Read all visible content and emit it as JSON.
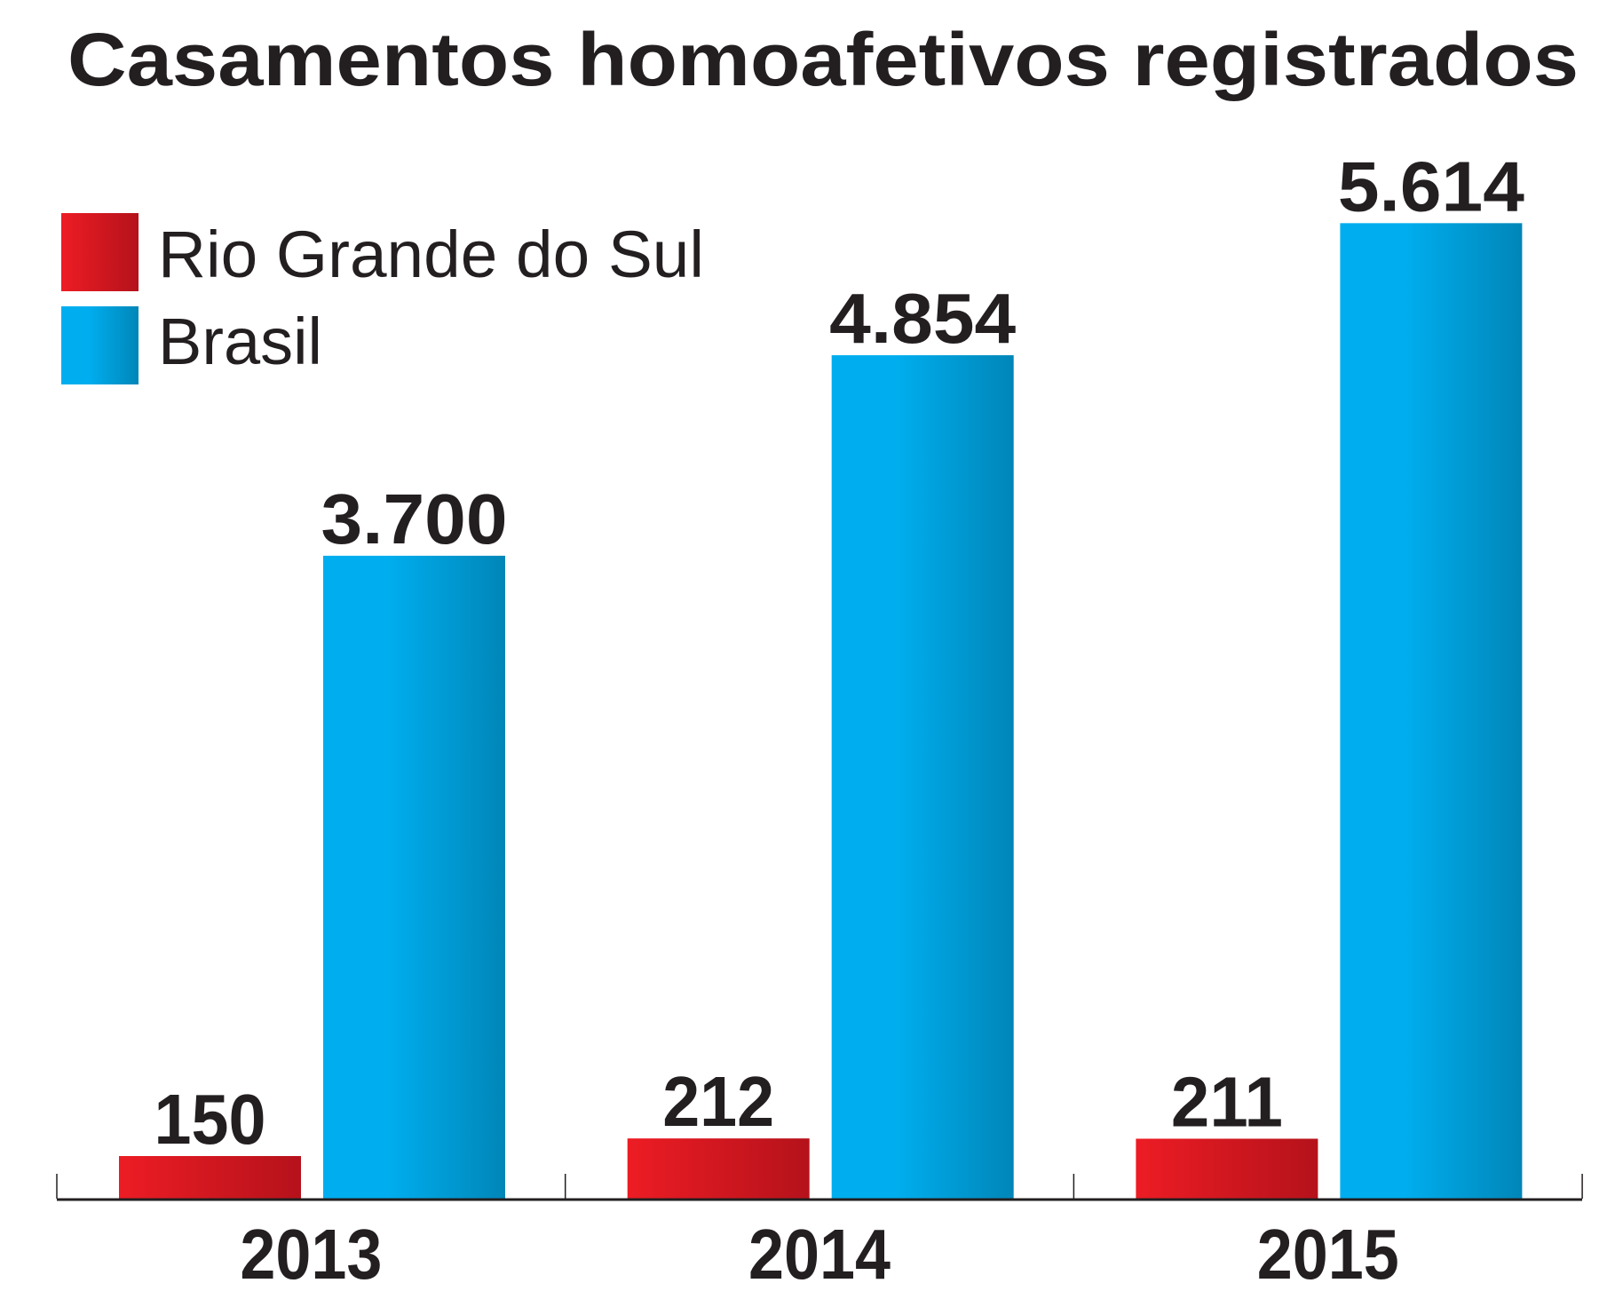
{
  "chart_data": {
    "type": "bar",
    "title": "Casamentos homoafetivos registrados",
    "xlabel": "",
    "ylabel": "",
    "categories": [
      "2013",
      "2014",
      "2015"
    ],
    "series": [
      {
        "name": "Rio Grande do Sul",
        "values": [
          150,
          212,
          211
        ],
        "labels": [
          "150",
          "212",
          "211"
        ],
        "color": "#ed1c24"
      },
      {
        "name": "Brasil",
        "values": [
          3700,
          4854,
          5614
        ],
        "labels": [
          "3.700",
          "4.854",
          "5.614"
        ],
        "color": "#00aeef"
      }
    ],
    "grid": false,
    "legend": "top-left"
  }
}
